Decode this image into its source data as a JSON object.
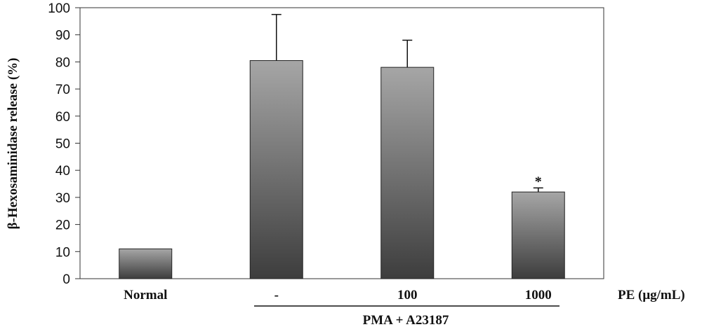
{
  "chart_data": {
    "type": "bar",
    "ylabel": "β-Hexosaminidase release (%)",
    "ylim": [
      0,
      100
    ],
    "yticks": [
      0,
      10,
      20,
      30,
      40,
      50,
      60,
      70,
      80,
      90,
      100
    ],
    "categories": [
      "Normal",
      "-",
      "100",
      "1000"
    ],
    "values": [
      11,
      80.5,
      78,
      32
    ],
    "errors": [
      0,
      17,
      10,
      1.5
    ],
    "significance": [
      "",
      "",
      "",
      "*"
    ],
    "x_unit_label": "PE (μg/mL)",
    "group_label": "PMA + A23187",
    "grid": false,
    "legend": "none"
  }
}
